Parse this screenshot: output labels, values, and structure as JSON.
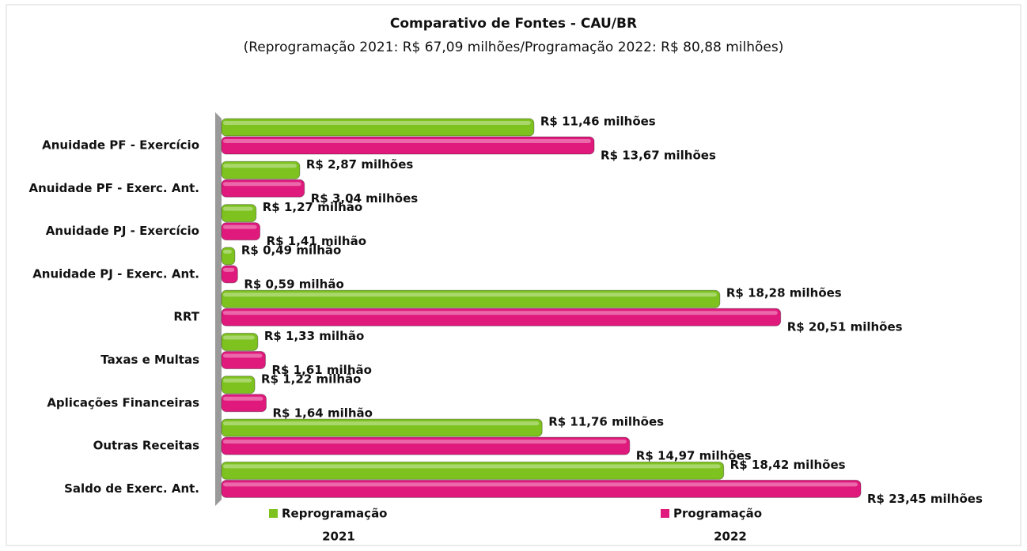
{
  "chart_data": {
    "type": "bar",
    "orientation": "horizontal",
    "title": "Comparativo de Fontes - CAU/BR",
    "subtitle": "(Reprogramação 2021: R$ 67,09 milhões/Programação 2022: R$ 80,88 milhões)",
    "categories": [
      "Anuidade PF - Exercício",
      "Anuidade PF - Exerc. Ant.",
      "Anuidade PJ - Exercício",
      "Anuidade PJ - Exerc. Ant.",
      "RRT",
      "Taxas e Multas",
      "Aplicações Financeiras",
      "Outras Receitas",
      "Saldo de Exerc. Ant."
    ],
    "series": [
      {
        "name": "Reprogramação",
        "year": "2021",
        "color": "#7dc21e",
        "values": [
          11.46,
          2.87,
          1.27,
          0.49,
          18.28,
          1.33,
          1.22,
          11.76,
          18.42
        ],
        "value_labels": [
          "R$ 11,46 milhões",
          "R$ 2,87 milhões",
          "R$ 1,27 milhão",
          "R$ 0,49 milhão",
          "R$ 18,28 milhões",
          "R$ 1,33 milhão",
          "R$ 1,22 milhão",
          "R$ 11,76 milhões",
          "R$ 18,42 milhões"
        ]
      },
      {
        "name": "Programação",
        "year": "2022",
        "color": "#e0197d",
        "values": [
          13.67,
          3.04,
          1.41,
          0.59,
          20.51,
          1.61,
          1.64,
          14.97,
          23.45
        ],
        "value_labels": [
          "R$ 13,67 milhões",
          "R$ 3,04 milhões",
          "R$ 1,41 milhão",
          "R$ 0,59 milhão",
          "R$ 20,51 milhões",
          "R$ 1,61 milhão",
          "R$ 1,64 milhão",
          "R$ 14,97 milhões",
          "R$ 23,45 milhões"
        ]
      }
    ]
  }
}
